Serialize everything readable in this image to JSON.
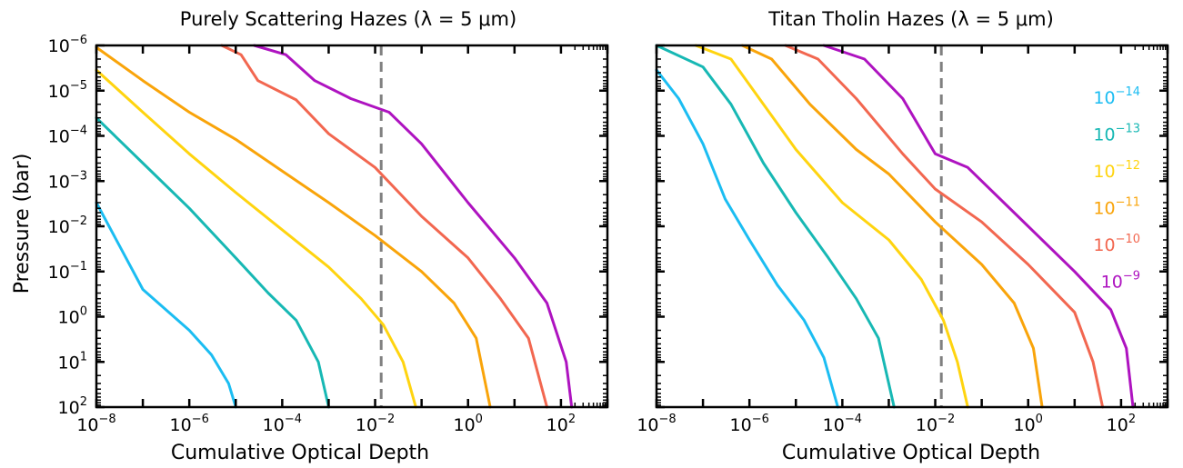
{
  "figure": {
    "ylabel": "Pressure (bar)",
    "legend_placement": "top-right of right panel",
    "reference_line_x": 0.0135
  },
  "chart_data": [
    {
      "type": "line",
      "title": "Purely Scattering Hazes (λ = 5 μm)",
      "xlabel": "Cumulative Optical Depth",
      "ylabel": "Pressure (bar)",
      "xscale": "log",
      "yscale": "log",
      "y_inverted": true,
      "xlim": [
        1e-08,
        1000
      ],
      "ylim": [
        100,
        1e-06
      ],
      "x_ticks": [
        {
          "v": "−8",
          "e": -8
        },
        {
          "v": "−6",
          "e": -6
        },
        {
          "v": "−4",
          "e": -4
        },
        {
          "v": "−2",
          "e": -2
        },
        {
          "v": "0",
          "e": 0
        },
        {
          "v": "2",
          "e": 2
        }
      ],
      "y_ticks": [
        {
          "v": "−6",
          "e": -6
        },
        {
          "v": "−5",
          "e": -5
        },
        {
          "v": "−4",
          "e": -4
        },
        {
          "v": "−3",
          "e": -3
        },
        {
          "v": "−2",
          "e": -2
        },
        {
          "v": "−1",
          "e": -1
        },
        {
          "v": "0",
          "e": 0
        },
        {
          "v": "1",
          "e": 1
        },
        {
          "v": "2",
          "e": 2
        }
      ],
      "series": [
        {
          "name": "10^-14",
          "color": "#1BBDF2",
          "points": [
            [
              1e-08,
              0.003
            ],
            [
              1e-07,
              0.25
            ],
            [
              1e-06,
              2
            ],
            [
              3e-06,
              7
            ],
            [
              7e-06,
              30
            ],
            [
              1e-05,
              100
            ]
          ]
        },
        {
          "name": "10^-13",
          "color": "#17B8B4",
          "points": [
            [
              1e-08,
              4e-05
            ],
            [
              1e-07,
              0.0004
            ],
            [
              1e-06,
              0.004
            ],
            [
              1e-05,
              0.05
            ],
            [
              5e-05,
              0.3
            ],
            [
              0.0002,
              1.2
            ],
            [
              0.0006,
              10
            ],
            [
              0.001,
              100
            ]
          ]
        },
        {
          "name": "10^-12",
          "color": "#FFD40F",
          "points": [
            [
              1e-08,
              3.5e-06
            ],
            [
              1e-07,
              3e-05
            ],
            [
              1e-06,
              0.00025
            ],
            [
              1e-05,
              0.0018
            ],
            [
              0.0001,
              0.012
            ],
            [
              0.001,
              0.08
            ],
            [
              0.005,
              0.4
            ],
            [
              0.015,
              1.5
            ],
            [
              0.04,
              10
            ],
            [
              0.075,
              100
            ]
          ]
        },
        {
          "name": "10^-11",
          "color": "#F9A40A",
          "points": [
            [
              1e-08,
              1.1e-06
            ],
            [
              1e-07,
              6e-06
            ],
            [
              1e-06,
              3e-05
            ],
            [
              1e-05,
              0.00012
            ],
            [
              0.0001,
              0.0006
            ],
            [
              0.001,
              0.003
            ],
            [
              0.01,
              0.016
            ],
            [
              0.1,
              0.1
            ],
            [
              0.5,
              0.5
            ],
            [
              1.5,
              3
            ],
            [
              3,
              100
            ]
          ]
        },
        {
          "name": "10^-10",
          "color": "#F26750",
          "points": [
            [
              5e-06,
              1e-06
            ],
            [
              1.3e-05,
              1.6e-06
            ],
            [
              3e-05,
              6e-06
            ],
            [
              0.0002,
              1.6e-05
            ],
            [
              0.001,
              9e-05
            ],
            [
              0.01,
              0.0005
            ],
            [
              0.1,
              0.006
            ],
            [
              1,
              0.05
            ],
            [
              5,
              0.4
            ],
            [
              20,
              3
            ],
            [
              50,
              100
            ]
          ]
        },
        {
          "name": "10^-9",
          "color": "#AE13C0",
          "points": [
            [
              2.5e-05,
              1e-06
            ],
            [
              0.00012,
              1.6e-06
            ],
            [
              0.0005,
              6e-06
            ],
            [
              0.003,
              1.5e-05
            ],
            [
              0.02,
              3e-05
            ],
            [
              0.1,
              0.00015
            ],
            [
              1,
              0.003
            ],
            [
              10,
              0.05
            ],
            [
              50,
              0.5
            ],
            [
              130,
              10
            ],
            [
              170,
              100
            ]
          ]
        }
      ]
    },
    {
      "type": "line",
      "title": "Titan Tholin Hazes (λ = 5 μm)",
      "xlabel": "Cumulative Optical Depth",
      "xscale": "log",
      "yscale": "log",
      "y_inverted": true,
      "xlim": [
        1e-08,
        1000
      ],
      "ylim": [
        100,
        1e-06
      ],
      "x_ticks": [
        {
          "v": "−8",
          "e": -8
        },
        {
          "v": "−6",
          "e": -6
        },
        {
          "v": "−4",
          "e": -4
        },
        {
          "v": "−2",
          "e": -2
        },
        {
          "v": "0",
          "e": 0
        },
        {
          "v": "2",
          "e": 2
        }
      ],
      "series": [
        {
          "name": "10^-14",
          "color": "#1BBDF2",
          "points": [
            [
              1e-08,
              3.5e-06
            ],
            [
              3e-08,
              1.5e-05
            ],
            [
              1e-07,
              0.00015
            ],
            [
              3e-07,
              0.0025
            ],
            [
              1e-06,
              0.02
            ],
            [
              4e-06,
              0.2
            ],
            [
              1.5e-05,
              1.2
            ],
            [
              4e-05,
              8
            ],
            [
              8e-05,
              100
            ]
          ]
        },
        {
          "name": "10^-13",
          "color": "#17B8B4",
          "points": [
            [
              1e-08,
              1e-06
            ],
            [
              1e-07,
              3e-06
            ],
            [
              4e-07,
              2e-05
            ],
            [
              2e-06,
              0.0004
            ],
            [
              1e-05,
              0.005
            ],
            [
              5e-05,
              0.05
            ],
            [
              0.0002,
              0.4
            ],
            [
              0.0006,
              3
            ],
            [
              0.0013,
              100
            ]
          ]
        },
        {
          "name": "10^-12",
          "color": "#FFD40F",
          "points": [
            [
              7e-08,
              1e-06
            ],
            [
              4e-07,
              2e-06
            ],
            [
              2e-06,
              2e-05
            ],
            [
              1e-05,
              0.0002
            ],
            [
              0.0001,
              0.003
            ],
            [
              0.001,
              0.02
            ],
            [
              0.005,
              0.15
            ],
            [
              0.015,
              1.2
            ],
            [
              0.03,
              10
            ],
            [
              0.05,
              100
            ]
          ]
        },
        {
          "name": "10^-11",
          "color": "#F9A40A",
          "points": [
            [
              7e-07,
              1e-06
            ],
            [
              3e-06,
              2e-06
            ],
            [
              2e-05,
              2e-05
            ],
            [
              0.0002,
              0.0002
            ],
            [
              0.001,
              0.0007
            ],
            [
              0.01,
              0.008
            ],
            [
              0.1,
              0.07
            ],
            [
              0.5,
              0.5
            ],
            [
              1.3,
              5
            ],
            [
              2,
              100
            ]
          ]
        },
        {
          "name": "10^-10",
          "color": "#F26750",
          "points": [
            [
              6e-06,
              1e-06
            ],
            [
              3e-05,
              2e-06
            ],
            [
              0.0002,
              1.5e-05
            ],
            [
              0.002,
              0.00025
            ],
            [
              0.01,
              0.0015
            ],
            [
              0.1,
              0.008
            ],
            [
              1,
              0.07
            ],
            [
              10,
              0.8
            ],
            [
              25,
              10
            ],
            [
              40,
              100
            ]
          ]
        },
        {
          "name": "10^-9",
          "color": "#AE13C0",
          "points": [
            [
              4e-05,
              1e-06
            ],
            [
              0.0003,
              2e-06
            ],
            [
              0.002,
              1.5e-05
            ],
            [
              0.01,
              0.00025
            ],
            [
              0.05,
              0.0005
            ],
            [
              1,
              0.01
            ],
            [
              10,
              0.1
            ],
            [
              60,
              0.7
            ],
            [
              130,
              5
            ],
            [
              180,
              100
            ]
          ]
        }
      ]
    }
  ],
  "legend": {
    "entries": [
      {
        "base": "10",
        "exp": "−14",
        "color": "#1BBDF2"
      },
      {
        "base": "10",
        "exp": "−13",
        "color": "#17B8B4"
      },
      {
        "base": "10",
        "exp": "−12",
        "color": "#FFD40F"
      },
      {
        "base": "10",
        "exp": "−11",
        "color": "#F9A40A"
      },
      {
        "base": "10",
        "exp": "−10",
        "color": "#F26750"
      },
      {
        "base": "10",
        "exp": "−9",
        "color": "#AE13C0"
      }
    ]
  }
}
